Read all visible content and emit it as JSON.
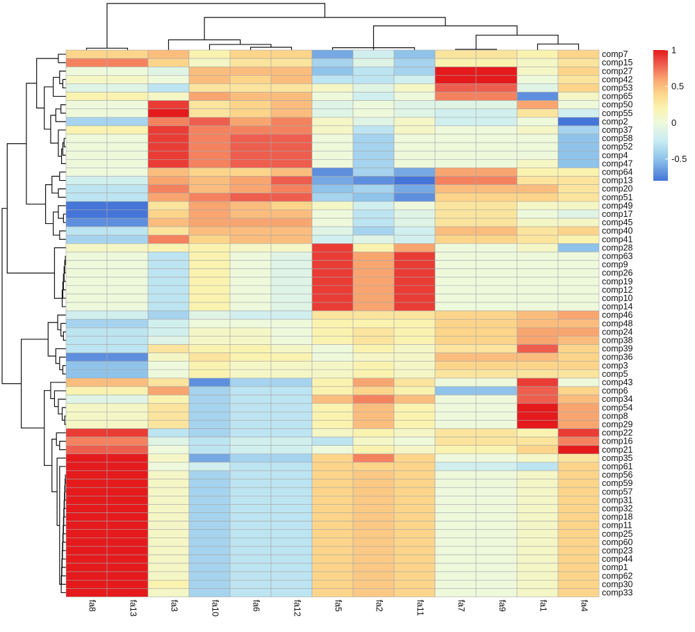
{
  "chart_data": {
    "type": "heatmap",
    "title": "",
    "color_scale": {
      "min": -0.8,
      "max": 1.0,
      "stops": [
        {
          "value": -0.8,
          "color": "#4575d8"
        },
        {
          "value": -0.5,
          "color": "#8fc3ea"
        },
        {
          "value": -0.25,
          "color": "#c9ecf3"
        },
        {
          "value": 0.0,
          "color": "#eef9dc"
        },
        {
          "value": 0.2,
          "color": "#faf3b0"
        },
        {
          "value": 0.4,
          "color": "#fcd58a"
        },
        {
          "value": 0.6,
          "color": "#f9a570"
        },
        {
          "value": 0.8,
          "color": "#ee5e4e"
        },
        {
          "value": 1.0,
          "color": "#e41a1c"
        }
      ]
    },
    "legend": {
      "position": "top-right",
      "ticks": [
        {
          "value": 1,
          "label": "1"
        },
        {
          "value": 0.5,
          "label": "0.5"
        },
        {
          "value": 0,
          "label": "0"
        },
        {
          "value": -0.5,
          "label": "-0.5"
        }
      ]
    },
    "columns": [
      "fa8",
      "fa13",
      "fa3",
      "fa10",
      "fa6",
      "fa12",
      "fa5",
      "fa2",
      "fa11",
      "fa7",
      "fa9",
      "fa1",
      "fa4"
    ],
    "rows": [
      "comp7",
      "comp15",
      "comp27",
      "comp42",
      "comp53",
      "comp65",
      "comp50",
      "comp55",
      "comp2",
      "comp37",
      "comp58",
      "comp52",
      "comp4",
      "comp47",
      "comp64",
      "comp13",
      "comp20",
      "comp51",
      "comp49",
      "comp17",
      "comp45",
      "comp40",
      "comp41",
      "comp28",
      "comp63",
      "comp9",
      "comp26",
      "comp19",
      "comp12",
      "comp10",
      "comp14",
      "comp46",
      "comp48",
      "comp24",
      "comp38",
      "comp39",
      "comp36",
      "comp3",
      "comp5",
      "comp43",
      "comp6",
      "comp34",
      "comp54",
      "comp8",
      "comp29",
      "comp22",
      "comp16",
      "comp21",
      "comp35",
      "comp61",
      "comp56",
      "comp59",
      "comp57",
      "comp31",
      "comp32",
      "comp18",
      "comp11",
      "comp25",
      "comp60",
      "comp23",
      "comp44",
      "comp1",
      "comp62",
      "comp30",
      "comp33"
    ],
    "values": [
      [
        0.4,
        0.4,
        0.5,
        0.2,
        0.4,
        0.4,
        -0.6,
        -0.2,
        -0.5,
        0.3,
        0.3,
        0.2,
        0.4
      ],
      [
        0.7,
        0.7,
        0.4,
        0.1,
        0.3,
        0.3,
        -0.4,
        -0.1,
        -0.4,
        0.2,
        0.2,
        0.1,
        0.3
      ],
      [
        0.0,
        0.0,
        -0.1,
        0.5,
        0.5,
        0.5,
        -0.5,
        -0.3,
        -0.4,
        1.0,
        1.0,
        0.1,
        0.4
      ],
      [
        0.1,
        0.1,
        0.0,
        0.5,
        0.4,
        0.5,
        -0.3,
        -0.3,
        -0.2,
        1.0,
        1.0,
        0.0,
        0.3
      ],
      [
        -0.1,
        -0.1,
        -0.3,
        0.3,
        0.3,
        0.3,
        0.1,
        -0.1,
        0.1,
        0.8,
        0.8,
        -0.1,
        0.4
      ],
      [
        0.2,
        0.2,
        0.1,
        0.6,
        0.5,
        0.5,
        0.0,
        -0.2,
        0.0,
        0.7,
        0.7,
        -0.7,
        0.1
      ],
      [
        0.0,
        0.0,
        0.9,
        0.3,
        0.4,
        0.5,
        -0.1,
        0.0,
        -0.1,
        -0.1,
        -0.1,
        0.6,
        0.0
      ],
      [
        0.0,
        0.0,
        1.0,
        0.3,
        0.4,
        0.5,
        -0.1,
        0.0,
        -0.1,
        -0.2,
        -0.2,
        0.3,
        -0.2
      ],
      [
        -0.4,
        -0.4,
        0.7,
        0.8,
        0.6,
        0.7,
        0.1,
        -0.1,
        0.1,
        -0.2,
        -0.2,
        0.0,
        -0.8
      ],
      [
        0.2,
        0.2,
        0.9,
        0.7,
        0.7,
        0.7,
        0.1,
        -0.3,
        0.1,
        0.0,
        0.0,
        0.1,
        -0.4
      ],
      [
        0.0,
        0.0,
        0.9,
        0.7,
        0.8,
        0.8,
        0.0,
        -0.4,
        0.0,
        0.0,
        0.0,
        0.0,
        -0.5
      ],
      [
        0.0,
        0.0,
        0.9,
        0.7,
        0.8,
        0.8,
        0.0,
        -0.4,
        0.0,
        0.0,
        0.0,
        0.0,
        -0.5
      ],
      [
        0.0,
        0.0,
        0.9,
        0.7,
        0.8,
        0.8,
        0.0,
        -0.4,
        0.0,
        0.0,
        0.0,
        0.0,
        -0.5
      ],
      [
        0.0,
        0.0,
        0.9,
        0.7,
        0.8,
        0.8,
        0.0,
        -0.4,
        0.0,
        0.0,
        0.0,
        0.1,
        -0.5
      ],
      [
        0.0,
        0.0,
        0.5,
        0.4,
        0.4,
        0.5,
        -0.7,
        -0.4,
        -0.6,
        0.6,
        0.6,
        0.2,
        0.2
      ],
      [
        -0.2,
        -0.2,
        0.6,
        0.5,
        0.6,
        0.8,
        -0.6,
        -0.7,
        -0.8,
        0.7,
        0.7,
        0.3,
        0.3
      ],
      [
        -0.3,
        -0.3,
        0.7,
        0.5,
        0.6,
        0.7,
        -0.5,
        -0.4,
        -0.6,
        0.5,
        0.5,
        0.5,
        0.3
      ],
      [
        -0.3,
        -0.3,
        0.6,
        0.7,
        0.8,
        0.8,
        -0.4,
        -0.5,
        -0.7,
        0.4,
        0.4,
        0.4,
        0.3
      ],
      [
        -0.8,
        -0.8,
        0.3,
        0.6,
        0.5,
        0.4,
        0.1,
        -0.2,
        0.0,
        0.3,
        0.3,
        0.1,
        0.1
      ],
      [
        -0.8,
        -0.8,
        0.4,
        0.6,
        0.5,
        0.5,
        0.0,
        -0.3,
        -0.1,
        0.3,
        0.3,
        0.0,
        -0.1
      ],
      [
        -0.7,
        -0.7,
        0.5,
        0.6,
        0.6,
        0.6,
        0.0,
        -0.3,
        -0.1,
        0.3,
        0.3,
        0.1,
        0.1
      ],
      [
        -0.3,
        -0.3,
        0.3,
        0.5,
        0.5,
        0.5,
        -0.1,
        -0.4,
        -0.2,
        0.5,
        0.5,
        0.3,
        0.4
      ],
      [
        -0.4,
        -0.4,
        0.7,
        0.4,
        0.5,
        0.5,
        -0.2,
        -0.1,
        -0.2,
        0.4,
        0.4,
        0.3,
        0.2
      ],
      [
        0.1,
        0.1,
        0.2,
        0.2,
        0.1,
        0.1,
        0.9,
        0.2,
        0.6,
        0.0,
        0.0,
        0.1,
        -0.5
      ],
      [
        0.0,
        0.0,
        -0.3,
        0.2,
        0.0,
        -0.1,
        0.9,
        0.6,
        0.9,
        0.0,
        0.0,
        0.0,
        0.0
      ],
      [
        0.0,
        0.0,
        -0.3,
        0.2,
        0.0,
        -0.1,
        0.9,
        0.6,
        0.9,
        0.0,
        0.0,
        0.0,
        0.0
      ],
      [
        0.0,
        0.0,
        -0.3,
        0.2,
        0.0,
        -0.1,
        0.9,
        0.6,
        0.9,
        0.0,
        0.0,
        0.0,
        0.0
      ],
      [
        0.0,
        0.0,
        -0.3,
        0.2,
        0.0,
        -0.1,
        0.9,
        0.6,
        0.9,
        0.0,
        0.0,
        0.0,
        0.0
      ],
      [
        0.0,
        0.0,
        -0.3,
        0.2,
        0.0,
        -0.1,
        0.9,
        0.6,
        0.9,
        0.0,
        0.0,
        0.0,
        0.0
      ],
      [
        0.0,
        0.0,
        -0.3,
        0.2,
        0.0,
        -0.1,
        0.9,
        0.6,
        0.9,
        0.0,
        0.0,
        0.0,
        0.0
      ],
      [
        0.0,
        0.0,
        -0.3,
        0.2,
        0.0,
        -0.1,
        0.9,
        0.6,
        0.9,
        0.0,
        0.0,
        0.0,
        0.0
      ],
      [
        -0.2,
        -0.2,
        -0.4,
        -0.1,
        -0.2,
        -0.2,
        0.3,
        0.3,
        0.3,
        0.4,
        0.4,
        0.5,
        0.6
      ],
      [
        -0.4,
        -0.4,
        -0.2,
        0.0,
        0.0,
        0.0,
        0.2,
        0.2,
        0.2,
        0.4,
        0.4,
        0.5,
        0.5
      ],
      [
        -0.3,
        -0.3,
        -0.2,
        0.1,
        0.1,
        0.0,
        0.2,
        0.3,
        0.2,
        0.4,
        0.4,
        0.6,
        0.6
      ],
      [
        -0.3,
        -0.3,
        -0.1,
        0.1,
        0.1,
        0.0,
        0.2,
        0.3,
        0.2,
        0.4,
        0.4,
        0.6,
        0.5
      ],
      [
        -0.3,
        -0.3,
        0.3,
        0.2,
        0.2,
        0.1,
        0.0,
        0.2,
        0.1,
        0.3,
        0.3,
        0.8,
        0.4
      ],
      [
        -0.7,
        -0.7,
        0.1,
        0.3,
        0.2,
        0.2,
        0.0,
        0.1,
        0.1,
        0.5,
        0.5,
        0.5,
        0.4
      ],
      [
        -0.5,
        -0.5,
        0.0,
        0.2,
        0.1,
        0.1,
        0.1,
        0.2,
        0.1,
        0.4,
        0.4,
        0.4,
        0.4
      ],
      [
        -0.5,
        -0.5,
        0.0,
        0.2,
        0.1,
        0.1,
        0.1,
        0.2,
        0.1,
        0.3,
        0.3,
        0.3,
        0.3
      ],
      [
        0.5,
        0.5,
        0.3,
        -0.7,
        -0.4,
        -0.4,
        0.2,
        0.6,
        0.3,
        0.0,
        0.0,
        0.9,
        0.0
      ],
      [
        0.2,
        0.2,
        0.6,
        -0.4,
        -0.3,
        -0.3,
        0.2,
        0.4,
        0.2,
        -0.5,
        -0.5,
        0.8,
        0.4
      ],
      [
        -0.1,
        -0.1,
        0.2,
        -0.4,
        -0.3,
        -0.3,
        0.5,
        0.7,
        0.5,
        0.0,
        0.0,
        0.8,
        0.5
      ],
      [
        0.1,
        0.1,
        0.3,
        -0.4,
        -0.3,
        -0.3,
        0.2,
        0.5,
        0.2,
        0.0,
        0.0,
        1.0,
        0.6
      ],
      [
        0.1,
        0.1,
        0.3,
        -0.4,
        -0.3,
        -0.3,
        0.2,
        0.5,
        0.2,
        0.0,
        0.0,
        1.0,
        0.6
      ],
      [
        0.1,
        0.1,
        0.3,
        -0.4,
        -0.3,
        -0.3,
        0.2,
        0.5,
        0.2,
        0.0,
        0.0,
        1.0,
        0.6
      ],
      [
        0.9,
        0.9,
        -0.3,
        -0.4,
        -0.3,
        -0.3,
        0.1,
        0.2,
        0.1,
        0.3,
        0.3,
        0.2,
        0.9
      ],
      [
        0.7,
        0.7,
        -0.1,
        -0.3,
        -0.2,
        -0.2,
        -0.3,
        0.1,
        0.0,
        0.3,
        0.3,
        0.3,
        0.7
      ],
      [
        0.8,
        0.8,
        0.0,
        -0.3,
        -0.2,
        -0.2,
        0.0,
        0.2,
        0.1,
        0.2,
        0.2,
        0.4,
        1.0
      ],
      [
        1.0,
        1.0,
        0.1,
        -0.6,
        -0.4,
        -0.4,
        0.4,
        0.7,
        0.4,
        0.0,
        0.0,
        0.1,
        0.3
      ],
      [
        1.0,
        1.0,
        0.0,
        -0.2,
        -0.3,
        -0.3,
        0.4,
        0.4,
        0.4,
        -0.2,
        -0.2,
        -0.3,
        0.4
      ],
      [
        1.0,
        1.0,
        0.1,
        -0.4,
        -0.3,
        -0.3,
        0.4,
        0.45,
        0.4,
        0.0,
        0.0,
        0.1,
        0.4
      ],
      [
        1.0,
        1.0,
        0.1,
        -0.4,
        -0.3,
        -0.3,
        0.4,
        0.45,
        0.4,
        0.0,
        0.0,
        0.1,
        0.4
      ],
      [
        1.0,
        1.0,
        0.1,
        -0.4,
        -0.3,
        -0.3,
        0.4,
        0.45,
        0.4,
        0.0,
        0.0,
        0.1,
        0.4
      ],
      [
        1.0,
        1.0,
        0.1,
        -0.4,
        -0.3,
        -0.3,
        0.4,
        0.45,
        0.4,
        0.0,
        0.0,
        0.1,
        0.4
      ],
      [
        1.0,
        1.0,
        0.1,
        -0.4,
        -0.3,
        -0.3,
        0.4,
        0.45,
        0.4,
        0.0,
        0.0,
        0.1,
        0.4
      ],
      [
        1.0,
        1.0,
        0.1,
        -0.4,
        -0.3,
        -0.3,
        0.4,
        0.45,
        0.4,
        0.0,
        0.0,
        0.1,
        0.4
      ],
      [
        1.0,
        1.0,
        0.1,
        -0.4,
        -0.3,
        -0.3,
        0.4,
        0.45,
        0.4,
        0.0,
        0.0,
        0.1,
        0.4
      ],
      [
        1.0,
        1.0,
        0.1,
        -0.4,
        -0.3,
        -0.3,
        0.4,
        0.45,
        0.4,
        0.0,
        0.0,
        0.1,
        0.4
      ],
      [
        1.0,
        1.0,
        0.1,
        -0.4,
        -0.3,
        -0.3,
        0.4,
        0.45,
        0.4,
        0.0,
        0.0,
        0.1,
        0.4
      ],
      [
        1.0,
        1.0,
        0.1,
        -0.4,
        -0.3,
        -0.3,
        0.4,
        0.45,
        0.4,
        0.0,
        0.0,
        0.1,
        0.4
      ],
      [
        1.0,
        1.0,
        0.1,
        -0.4,
        -0.3,
        -0.3,
        0.4,
        0.45,
        0.4,
        0.0,
        0.0,
        0.1,
        0.4
      ],
      [
        1.0,
        1.0,
        0.1,
        -0.4,
        -0.3,
        -0.3,
        0.4,
        0.45,
        0.4,
        0.0,
        0.0,
        0.1,
        0.4
      ],
      [
        1.0,
        1.0,
        0.1,
        -0.4,
        -0.3,
        -0.3,
        0.4,
        0.45,
        0.4,
        0.0,
        0.0,
        0.1,
        0.4
      ],
      [
        1.0,
        1.0,
        0.2,
        -0.4,
        -0.3,
        -0.3,
        0.4,
        0.45,
        0.4,
        0.0,
        0.0,
        0.1,
        0.4
      ],
      [
        1.0,
        1.0,
        0.1,
        -0.4,
        -0.3,
        -0.3,
        0.4,
        0.45,
        0.4,
        0.0,
        0.0,
        0.1,
        0.4
      ]
    ]
  }
}
